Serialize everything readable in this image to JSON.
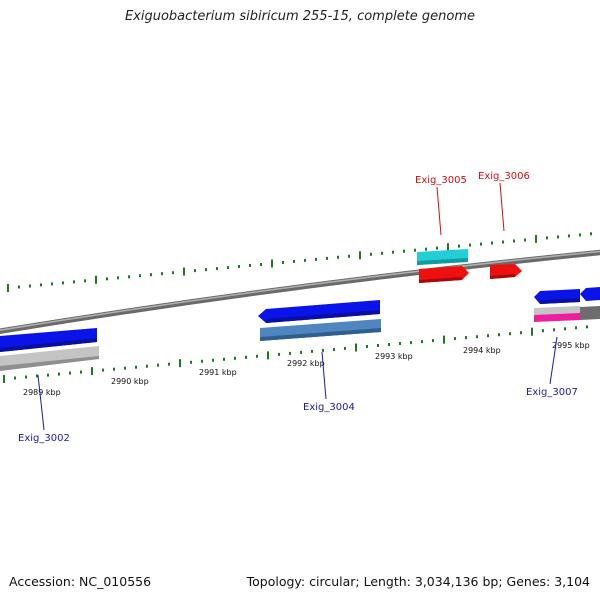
{
  "title": "Exiguobacterium sibiricum 255-15, complete genome",
  "footer": {
    "accession": "Accession: NC_010556",
    "summary": "Topology: circular; Length: 3,034,136 bp; Genes: 3,104"
  },
  "scale_labels": [
    "2989 kbp",
    "2990 kbp",
    "2991 kbp",
    "2992 kbp",
    "2993 kbp",
    "2994 kbp",
    "2995 kbp"
  ],
  "gene_labels": [
    "Exig_3002",
    "Exig_3004",
    "Exig_3005",
    "Exig_3006",
    "Exig_3007"
  ],
  "colors": {
    "backbone": "#8a8a8a",
    "tick": "#1e7a1e",
    "gene_forward": "#0b14e8",
    "gene_steelblue": "#4a7fb5",
    "gene_grey": "#bdbdbd",
    "gene_cyan": "#22cfd6",
    "gene_red": "#ee0f0f",
    "gene_magenta": "#ee1c9e",
    "gene_darkgrey": "#6d6d6d",
    "label_blue": "#1a1aa8",
    "label_red": "#cc1010"
  }
}
